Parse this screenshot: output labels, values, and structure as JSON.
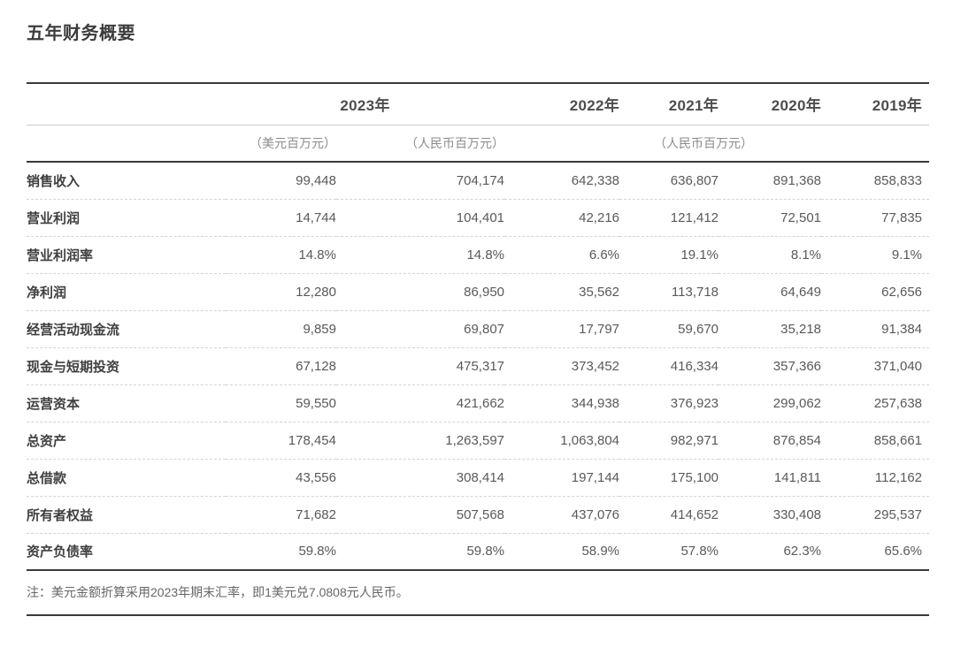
{
  "page": {
    "title": "五年财务概要",
    "note": "注：美元金额折算采用2023年期末汇率，即1美元兑7.0808元人民币。"
  },
  "table": {
    "year_headers": [
      "2023年",
      "2022年",
      "2021年",
      "2020年",
      "2019年"
    ],
    "unit_headers": [
      "（美元百万元）",
      "（人民币百万元）",
      "（人民币百万元）"
    ],
    "rows": [
      {
        "label": "销售收入",
        "values": [
          "99,448",
          "704,174",
          "642,338",
          "636,807",
          "891,368",
          "858,833"
        ]
      },
      {
        "label": "营业利润",
        "values": [
          "14,744",
          "104,401",
          "42,216",
          "121,412",
          "72,501",
          "77,835"
        ]
      },
      {
        "label": "营业利润率",
        "values": [
          "14.8%",
          "14.8%",
          "6.6%",
          "19.1%",
          "8.1%",
          "9.1%"
        ]
      },
      {
        "label": "净利润",
        "values": [
          "12,280",
          "86,950",
          "35,562",
          "113,718",
          "64,649",
          "62,656"
        ]
      },
      {
        "label": "经营活动现金流",
        "values": [
          "9,859",
          "69,807",
          "17,797",
          "59,670",
          "35,218",
          "91,384"
        ]
      },
      {
        "label": "现金与短期投资",
        "values": [
          "67,128",
          "475,317",
          "373,452",
          "416,334",
          "357,366",
          "371,040"
        ]
      },
      {
        "label": "运营资本",
        "values": [
          "59,550",
          "421,662",
          "344,938",
          "376,923",
          "299,062",
          "257,638"
        ]
      },
      {
        "label": "总资产",
        "values": [
          "178,454",
          "1,263,597",
          "1,063,804",
          "982,971",
          "876,854",
          "858,661"
        ]
      },
      {
        "label": "总借款",
        "values": [
          "43,556",
          "308,414",
          "197,144",
          "175,100",
          "141,811",
          "112,162"
        ]
      },
      {
        "label": "所有者权益",
        "values": [
          "71,682",
          "507,568",
          "437,076",
          "414,652",
          "330,408",
          "295,537"
        ]
      },
      {
        "label": "资产负债率",
        "values": [
          "59.8%",
          "59.8%",
          "58.9%",
          "57.8%",
          "62.3%",
          "65.6%"
        ]
      }
    ]
  },
  "colors": {
    "text_dark": "#3f3f3f",
    "text_value": "#595959",
    "text_muted": "#8c8c8c",
    "border_dark": "#3a3a3a",
    "border_light": "#cccccc"
  }
}
